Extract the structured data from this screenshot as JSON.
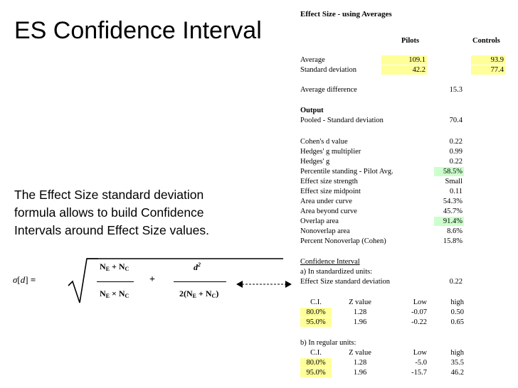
{
  "slide": {
    "title": "ES Confidence Interval",
    "description": [
      "The Effect Size standard deviation",
      "formula allows to build Confidence",
      "Intervals around Effect Size values."
    ]
  },
  "formula": {
    "lhs": "σ[d] =",
    "plus": "+",
    "frac2_num": "d2",
    "frac2_den": "2(NE + NC)"
  },
  "sheet": {
    "title": "Effect Size - using Averages",
    "col_pilots": "Pilots",
    "col_controls": "Controls",
    "average": {
      "label": "Average",
      "pilots": "109.1",
      "controls": "93.9"
    },
    "stdev": {
      "label": "Standard deviation",
      "pilots": "42.2",
      "controls": "77.4"
    },
    "avg_diff": {
      "label": "Average difference",
      "value": "15.3"
    },
    "output_label": "Output",
    "pooled": {
      "label": "Pooled - Standard deviation",
      "value": "70.4"
    },
    "stats": [
      {
        "label": "Cohen's d value",
        "value": "0.22",
        "hl": ""
      },
      {
        "label": "Hedges' g multiplier",
        "value": "0.99",
        "hl": ""
      },
      {
        "label": "Hedges' g",
        "value": "0.22",
        "hl": ""
      },
      {
        "label": "Percentile standing - Pilot Avg.",
        "value": "58.5%",
        "hl": "green"
      },
      {
        "label": "Effect size strength",
        "value": "Small",
        "hl": ""
      },
      {
        "label": "Effect size midpoint",
        "value": "0.11",
        "hl": ""
      },
      {
        "label": "Area under curve",
        "value": "54.3%",
        "hl": ""
      },
      {
        "label": "Area beyond curve",
        "value": "45.7%",
        "hl": ""
      },
      {
        "label": "Overlap area",
        "value": "91.4%",
        "hl": "green"
      },
      {
        "label": "Nonoverlap area",
        "value": "8.6%",
        "hl": ""
      },
      {
        "label": "Percent Nonoverlap (Cohen)",
        "value": "15.8%",
        "hl": ""
      }
    ],
    "ci_title": "Confidence Interval",
    "std_units_label": "a) In standardized units:",
    "es_sd": {
      "label": "Effect Size standard deviation",
      "value": "0.22"
    },
    "ci_headers": [
      "C.I.",
      "Z value",
      "Low",
      "high"
    ],
    "ci_std_rows": [
      [
        "80.0%",
        "1.28",
        "-0.07",
        "0.50"
      ],
      [
        "95.0%",
        "1.96",
        "-0.22",
        "0.65"
      ]
    ],
    "reg_units_label": "b) In regular units:",
    "ci_reg_rows": [
      [
        "80.0%",
        "1.28",
        "-5.0",
        "35.5"
      ],
      [
        "95.0%",
        "1.96",
        "-15.7",
        "46.2"
      ]
    ]
  }
}
